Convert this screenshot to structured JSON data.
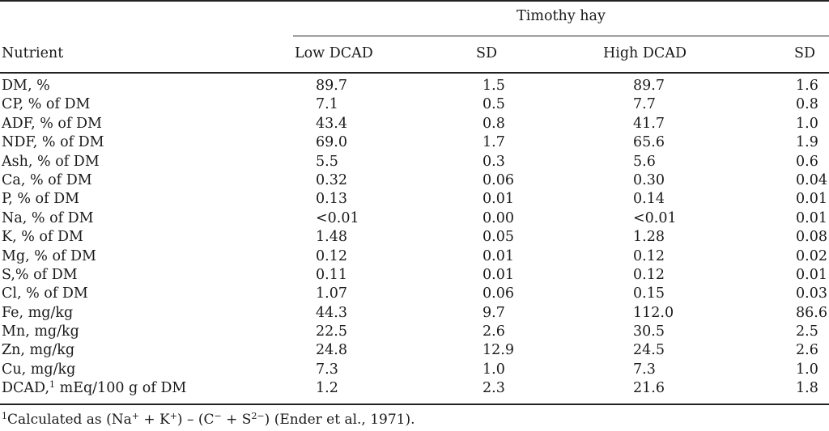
{
  "table": {
    "group_title": "Timothy hay",
    "headers": {
      "nutrient": "Nutrient",
      "low_dcad": "Low DCAD",
      "sd1": "SD",
      "high_dcad": "High DCAD",
      "sd2": "SD"
    },
    "rows": [
      {
        "name": "DM, %",
        "low": "89.7",
        "sd1": "1.5",
        "high": "89.7",
        "sd2": "1.6"
      },
      {
        "name": "CP, % of DM",
        "low": "7.1",
        "sd1": "0.5",
        "high": "7.7",
        "sd2": "0.8"
      },
      {
        "name": "ADF, % of DM",
        "low": "43.4",
        "sd1": "0.8",
        "high": "41.7",
        "sd2": "1.0"
      },
      {
        "name": "NDF, % of DM",
        "low": "69.0",
        "sd1": "1.7",
        "high": "65.6",
        "sd2": "1.9"
      },
      {
        "name": "Ash, % of DM",
        "low": "5.5",
        "sd1": "0.3",
        "high": "5.6",
        "sd2": "0.6"
      },
      {
        "name": "Ca, % of DM",
        "low": "0.32",
        "sd1": "0.06",
        "high": "0.30",
        "sd2": "0.04"
      },
      {
        "name": "P, % of DM",
        "low": "0.13",
        "sd1": "0.01",
        "high": "0.14",
        "sd2": "0.01"
      },
      {
        "name": "Na, % of DM",
        "low": "<0.01",
        "sd1": "0.00",
        "high": "<0.01",
        "sd2": "0.01"
      },
      {
        "name": "K, % of DM",
        "low": "1.48",
        "sd1": "0.05",
        "high": "1.28",
        "sd2": "0.08"
      },
      {
        "name": "Mg, % of DM",
        "low": "0.12",
        "sd1": "0.01",
        "high": "0.12",
        "sd2": "0.02"
      },
      {
        "name": "S,% of DM",
        "low": "0.11",
        "sd1": "0.01",
        "high": "0.12",
        "sd2": "0.01"
      },
      {
        "name": "Cl, % of DM",
        "low": "1.07",
        "sd1": "0.06",
        "high": "0.15",
        "sd2": "0.03"
      },
      {
        "name": "Fe, mg/kg",
        "low": "44.3",
        "sd1": "9.7",
        "high": "112.0",
        "sd2": "86.6"
      },
      {
        "name": "Mn, mg/kg",
        "low": "22.5",
        "sd1": "2.6",
        "high": "30.5",
        "sd2": "2.5"
      },
      {
        "name": "Zn, mg/kg",
        "low": "24.8",
        "sd1": "12.9",
        "high": "24.5",
        "sd2": "2.6"
      },
      {
        "name": "Cu, mg/kg",
        "low": "7.3",
        "sd1": "1.0",
        "high": "7.3",
        "sd2": "1.0"
      }
    ],
    "dcad_row": {
      "name_main": "DCAD,",
      "name_sup": "1",
      "name_rest": " mEq/100 g of DM",
      "low": "1.2",
      "sd1": "2.3",
      "high": "21.6",
      "sd2": "1.8"
    }
  },
  "footnote": {
    "marker": "1",
    "text_a": "Calculated as (Na",
    "sup_a": "+",
    "text_b": " + K",
    "sup_b": "+",
    "text_c": ") – (C",
    "sup_c": "−",
    "text_d": " + S",
    "sup_d": "2−",
    "text_e": ") (Ender et al., 1971)."
  }
}
